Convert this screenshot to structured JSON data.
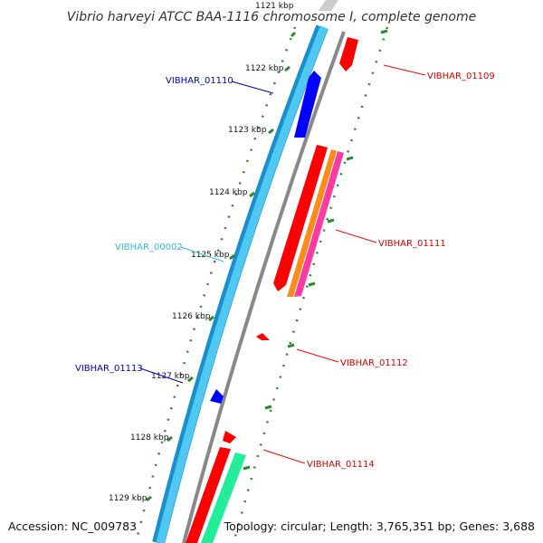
{
  "title": "Vibrio harveyi ATCC BAA-1116 chromosome I, complete genome",
  "footer": {
    "accession": "Accession: NC_009783",
    "topology": "Topology: circular; Length: 3,765,351 bp; Genes: 3,688"
  },
  "ticks": [
    "1121 kbp",
    "1122 kbp",
    "1123 kbp",
    "1124 kbp",
    "1125 kbp",
    "1126 kbp",
    "1127 kbp",
    "1128 kbp",
    "1129 kbp"
  ],
  "labels": {
    "VIBHAR_01109": "VIBHAR_01109",
    "VIBHAR_01110": "VIBHAR_01110",
    "VIBHAR_01111": "VIBHAR_01111",
    "VIBHAR_00002": "VIBHAR_00002",
    "VIBHAR_01112": "VIBHAR_01112",
    "VIBHAR_01113": "VIBHAR_01113",
    "VIBHAR_01114": "VIBHAR_01114"
  },
  "colors": {
    "forward_gene": "#ff0000",
    "reverse_gene": "#0000ff",
    "rna_gene": "#33ccee",
    "orange_feature": "#ff8c1a",
    "pink_feature": "#ff3aa0",
    "green_feature": "#22ee99",
    "backbone_light": "#4fc8f4",
    "backbone_dark": "#1a8fcc",
    "backbone_gray": "#888888",
    "tick_dots": "#2a8a2a"
  }
}
